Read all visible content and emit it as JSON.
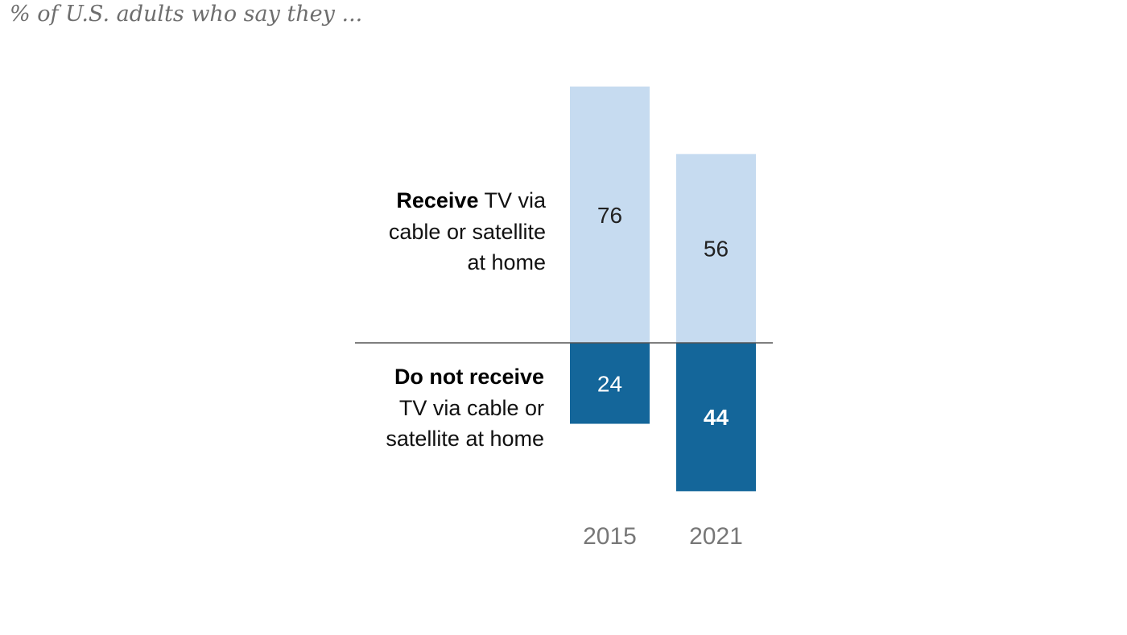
{
  "subtitle": "% of U.S. adults who say they ...",
  "labels": {
    "receive_bold": "Receive",
    "receive_rest_1": " TV via",
    "receive_rest_2": "cable or satellite",
    "receive_rest_3": "at home",
    "not_receive_bold": "Do not receive",
    "not_receive_rest_1": "TV via cable or",
    "not_receive_rest_2": "satellite at home"
  },
  "colors": {
    "receive": "#c6dbf0",
    "not_receive": "#14669a",
    "baseline": "#555555",
    "receive_value_text": "#222222",
    "not_receive_value_text": "#ffffff"
  },
  "chart_data": {
    "type": "bar",
    "subtype": "diverging-stacked",
    "title": "",
    "subtitle": "% of U.S. adults who say they ...",
    "categories": [
      "2015",
      "2021"
    ],
    "series": [
      {
        "name": "Receive TV via cable or satellite at home",
        "values": [
          76,
          56
        ]
      },
      {
        "name": "Do not receive TV via cable or satellite at home",
        "values": [
          24,
          44
        ]
      }
    ],
    "value_labels": {
      "receive": [
        "76",
        "56"
      ],
      "not_receive": [
        "24",
        "44"
      ]
    },
    "emphasized": {
      "series": 1,
      "index": 1
    },
    "xlabel": "",
    "ylabel": "",
    "ylim": [
      -44,
      76
    ],
    "grid": false,
    "legend": "row labels at left"
  }
}
